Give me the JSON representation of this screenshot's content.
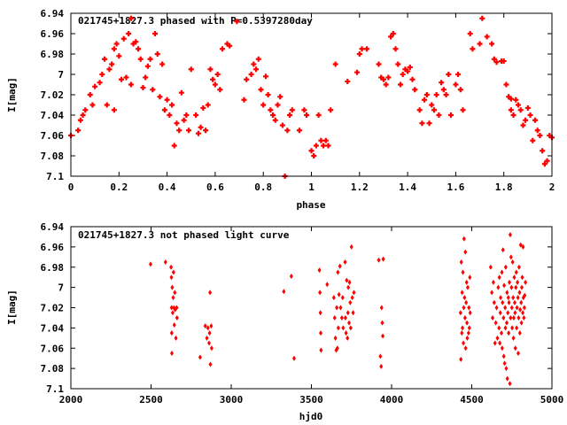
{
  "chart_data": [
    {
      "type": "scatter",
      "title": "021745+1827.3 phased with P=0.5397280day",
      "xlabel": "phase",
      "ylabel": "I[mag]",
      "xlim": [
        0,
        2
      ],
      "ylim": [
        7.1,
        6.94
      ],
      "y_inverted": true,
      "grid": false,
      "marker_color": "#ff0000",
      "marker": "plus",
      "x_ticks": [
        "0",
        "0.2",
        "0.4",
        "0.6",
        "0.8",
        "1",
        "1.2",
        "1.4",
        "1.6",
        "1.8",
        "2"
      ],
      "y_ticks": [
        "6.94",
        "6.96",
        "6.98",
        "7",
        "7.02",
        "7.04",
        "7.06",
        "7.08",
        "7.1"
      ],
      "points": [
        [
          0.0,
          7.06
        ],
        [
          0.03,
          7.055
        ],
        [
          0.04,
          7.045
        ],
        [
          0.05,
          7.04
        ],
        [
          0.06,
          7.035
        ],
        [
          0.08,
          7.02
        ],
        [
          0.09,
          7.03
        ],
        [
          0.1,
          7.012
        ],
        [
          0.12,
          7.008
        ],
        [
          0.13,
          7.0
        ],
        [
          0.14,
          6.985
        ],
        [
          0.15,
          7.03
        ],
        [
          0.16,
          6.995
        ],
        [
          0.17,
          6.99
        ],
        [
          0.18,
          7.035
        ],
        [
          0.18,
          6.975
        ],
        [
          0.19,
          6.97
        ],
        [
          0.2,
          6.982
        ],
        [
          0.21,
          7.005
        ],
        [
          0.22,
          6.965
        ],
        [
          0.23,
          7.003
        ],
        [
          0.24,
          6.96
        ],
        [
          0.25,
          6.945
        ],
        [
          0.25,
          7.01
        ],
        [
          0.26,
          6.97
        ],
        [
          0.27,
          6.968
        ],
        [
          0.28,
          6.975
        ],
        [
          0.29,
          6.985
        ],
        [
          0.3,
          7.013
        ],
        [
          0.31,
          7.003
        ],
        [
          0.32,
          6.992
        ],
        [
          0.33,
          6.985
        ],
        [
          0.34,
          7.015
        ],
        [
          0.35,
          6.96
        ],
        [
          0.36,
          6.98
        ],
        [
          0.37,
          7.022
        ],
        [
          0.38,
          6.99
        ],
        [
          0.39,
          7.035
        ],
        [
          0.4,
          7.025
        ],
        [
          0.41,
          7.04
        ],
        [
          0.42,
          7.03
        ],
        [
          0.43,
          7.07
        ],
        [
          0.44,
          7.048
        ],
        [
          0.45,
          7.055
        ],
        [
          0.46,
          7.018
        ],
        [
          0.47,
          7.045
        ],
        [
          0.48,
          7.04
        ],
        [
          0.49,
          7.055
        ],
        [
          0.5,
          6.995
        ],
        [
          0.52,
          7.04
        ],
        [
          0.53,
          7.058
        ],
        [
          0.54,
          7.052
        ],
        [
          0.55,
          7.033
        ],
        [
          0.56,
          7.055
        ],
        [
          0.57,
          7.03
        ],
        [
          0.58,
          6.995
        ],
        [
          0.59,
          7.005
        ],
        [
          0.6,
          7.01
        ],
        [
          0.61,
          7.0
        ],
        [
          0.62,
          7.015
        ],
        [
          0.63,
          6.975
        ],
        [
          0.65,
          6.97
        ],
        [
          0.66,
          6.972
        ],
        [
          0.69,
          6.948
        ],
        [
          0.72,
          7.025
        ],
        [
          0.73,
          7.005
        ],
        [
          0.75,
          7.0
        ],
        [
          0.76,
          6.99
        ],
        [
          0.77,
          6.995
        ],
        [
          0.78,
          6.985
        ],
        [
          0.79,
          7.015
        ],
        [
          0.8,
          7.03
        ],
        [
          0.81,
          7.002
        ],
        [
          0.82,
          7.02
        ],
        [
          0.83,
          7.035
        ],
        [
          0.84,
          7.04
        ],
        [
          0.85,
          7.045
        ],
        [
          0.86,
          7.03
        ],
        [
          0.87,
          7.022
        ],
        [
          0.88,
          7.05
        ],
        [
          0.89,
          7.1
        ],
        [
          0.9,
          7.055
        ],
        [
          0.91,
          7.04
        ],
        [
          0.92,
          7.035
        ],
        [
          0.95,
          7.055
        ],
        [
          0.97,
          7.035
        ],
        [
          0.98,
          7.04
        ],
        [
          1.0,
          7.075
        ],
        [
          1.01,
          7.08
        ],
        [
          1.02,
          7.07
        ],
        [
          1.03,
          7.04
        ],
        [
          1.04,
          7.065
        ],
        [
          1.05,
          7.07
        ],
        [
          1.06,
          7.065
        ],
        [
          1.07,
          7.07
        ],
        [
          1.08,
          7.035
        ],
        [
          1.1,
          6.99
        ],
        [
          1.15,
          7.007
        ],
        [
          1.19,
          6.998
        ],
        [
          1.2,
          6.98
        ],
        [
          1.21,
          6.975
        ],
        [
          1.23,
          6.975
        ],
        [
          1.28,
          6.99
        ],
        [
          1.29,
          7.003
        ],
        [
          1.3,
          7.005
        ],
        [
          1.31,
          7.01
        ],
        [
          1.32,
          7.003
        ],
        [
          1.33,
          6.963
        ],
        [
          1.34,
          6.96
        ],
        [
          1.35,
          6.975
        ],
        [
          1.36,
          6.99
        ],
        [
          1.37,
          7.01
        ],
        [
          1.38,
          7.0
        ],
        [
          1.39,
          6.995
        ],
        [
          1.4,
          6.997
        ],
        [
          1.41,
          6.993
        ],
        [
          1.42,
          7.005
        ],
        [
          1.43,
          7.015
        ],
        [
          1.45,
          7.035
        ],
        [
          1.46,
          7.048
        ],
        [
          1.47,
          7.025
        ],
        [
          1.48,
          7.02
        ],
        [
          1.49,
          7.048
        ],
        [
          1.5,
          7.03
        ],
        [
          1.51,
          7.035
        ],
        [
          1.52,
          7.02
        ],
        [
          1.53,
          7.04
        ],
        [
          1.54,
          7.008
        ],
        [
          1.55,
          7.015
        ],
        [
          1.56,
          7.02
        ],
        [
          1.57,
          7.0
        ],
        [
          1.58,
          7.04
        ],
        [
          1.6,
          7.01
        ],
        [
          1.61,
          7.0
        ],
        [
          1.62,
          7.015
        ],
        [
          1.63,
          7.035
        ],
        [
          1.66,
          6.96
        ],
        [
          1.67,
          6.975
        ],
        [
          1.7,
          6.97
        ],
        [
          1.71,
          6.945
        ],
        [
          1.73,
          6.963
        ],
        [
          1.75,
          6.97
        ],
        [
          1.76,
          6.985
        ],
        [
          1.77,
          6.988
        ],
        [
          1.79,
          6.987
        ],
        [
          1.8,
          6.987
        ],
        [
          1.81,
          7.01
        ],
        [
          1.82,
          7.022
        ],
        [
          1.83,
          7.035
        ],
        [
          1.83,
          7.024
        ],
        [
          1.84,
          7.04
        ],
        [
          1.85,
          7.025
        ],
        [
          1.86,
          7.03
        ],
        [
          1.87,
          7.035
        ],
        [
          1.88,
          7.05
        ],
        [
          1.89,
          7.045
        ],
        [
          1.9,
          7.033
        ],
        [
          1.91,
          7.04
        ],
        [
          1.92,
          7.065
        ],
        [
          1.93,
          7.045
        ],
        [
          1.94,
          7.055
        ],
        [
          1.95,
          7.06
        ],
        [
          1.96,
          7.075
        ],
        [
          1.97,
          7.088
        ],
        [
          1.98,
          7.085
        ],
        [
          1.99,
          7.06
        ],
        [
          2.0,
          7.062
        ]
      ]
    },
    {
      "type": "scatter",
      "title": "021745+1827.3 not phased light curve",
      "xlabel": "hjd0",
      "ylabel": "I[mag]",
      "xlim": [
        2000,
        5000
      ],
      "ylim": [
        7.1,
        6.94
      ],
      "y_inverted": true,
      "grid": false,
      "marker_color": "#ff0000",
      "marker": "diamond",
      "x_ticks": [
        "2000",
        "2500",
        "3000",
        "3500",
        "4000",
        "4500",
        "5000"
      ],
      "y_ticks": [
        "6.94",
        "6.96",
        "6.98",
        "7",
        "7.02",
        "7.04",
        "7.06",
        "7.08",
        "7.1"
      ],
      "points": [
        [
          2497,
          6.977
        ],
        [
          2590,
          6.975
        ],
        [
          2625,
          6.98
        ],
        [
          2627,
          6.99
        ],
        [
          2628,
          7.02
        ],
        [
          2629,
          7.045
        ],
        [
          2630,
          7.065
        ],
        [
          2632,
          7.0
        ],
        [
          2635,
          7.025
        ],
        [
          2638,
          7.01
        ],
        [
          2640,
          6.985
        ],
        [
          2642,
          7.02
        ],
        [
          2645,
          7.037
        ],
        [
          2648,
          7.005
        ],
        [
          2650,
          7.022
        ],
        [
          2655,
          7.05
        ],
        [
          2660,
          7.02
        ],
        [
          2662,
          7.03
        ],
        [
          2806,
          7.069
        ],
        [
          2838,
          7.038
        ],
        [
          2848,
          7.05
        ],
        [
          2855,
          7.04
        ],
        [
          2862,
          7.055
        ],
        [
          2865,
          7.045
        ],
        [
          2868,
          7.005
        ],
        [
          2870,
          7.076
        ],
        [
          2875,
          7.038
        ],
        [
          2878,
          7.06
        ],
        [
          3328,
          7.004
        ],
        [
          3375,
          6.989
        ],
        [
          3392,
          7.07
        ],
        [
          3550,
          6.983
        ],
        [
          3553,
          7.005
        ],
        [
          3556,
          7.025
        ],
        [
          3558,
          7.045
        ],
        [
          3560,
          7.062
        ],
        [
          3598,
          6.997
        ],
        [
          3640,
          7.01
        ],
        [
          3645,
          7.03
        ],
        [
          3650,
          7.05
        ],
        [
          3655,
          7.062
        ],
        [
          3658,
          7.02
        ],
        [
          3662,
          7.06
        ],
        [
          3665,
          6.985
        ],
        [
          3668,
          7.04
        ],
        [
          3672,
          7.007
        ],
        [
          3678,
          6.979
        ],
        [
          3682,
          7.02
        ],
        [
          3690,
          7.03
        ],
        [
          3695,
          7.01
        ],
        [
          3698,
          7.04
        ],
        [
          3710,
          6.975
        ],
        [
          3712,
          7.03
        ],
        [
          3716,
          7.045
        ],
        [
          3720,
          6.993
        ],
        [
          3725,
          7.05
        ],
        [
          3728,
          7.025
        ],
        [
          3730,
          7.0
        ],
        [
          3735,
          7.035
        ],
        [
          3738,
          6.995
        ],
        [
          3742,
          7.015
        ],
        [
          3745,
          7.04
        ],
        [
          3750,
          6.96
        ],
        [
          3755,
          7.01
        ],
        [
          3760,
          7.025
        ],
        [
          3765,
          7.005
        ],
        [
          3920,
          6.973
        ],
        [
          3930,
          7.068
        ],
        [
          3935,
          7.078
        ],
        [
          3938,
          7.02
        ],
        [
          3942,
          7.035
        ],
        [
          3945,
          7.048
        ],
        [
          3948,
          6.972
        ],
        [
          4430,
          7.025
        ],
        [
          4432,
          7.071
        ],
        [
          4435,
          6.975
        ],
        [
          4438,
          7.045
        ],
        [
          4440,
          7.005
        ],
        [
          4442,
          7.04
        ],
        [
          4445,
          6.985
        ],
        [
          4448,
          7.055
        ],
        [
          4450,
          7.02
        ],
        [
          4452,
          6.952
        ],
        [
          4455,
          7.01
        ],
        [
          4458,
          7.03
        ],
        [
          4460,
          6.965
        ],
        [
          4462,
          7.06
        ],
        [
          4465,
          7.015
        ],
        [
          4468,
          6.995
        ],
        [
          4470,
          7.035
        ],
        [
          4472,
          7.05
        ],
        [
          4475,
          7.0
        ],
        [
          4480,
          7.045
        ],
        [
          4482,
          7.02
        ],
        [
          4485,
          7.04
        ],
        [
          4488,
          6.99
        ],
        [
          4490,
          7.025
        ],
        [
          4618,
          6.98
        ],
        [
          4625,
          7.005
        ],
        [
          4630,
          7.03
        ],
        [
          4635,
          6.995
        ],
        [
          4640,
          7.015
        ],
        [
          4645,
          7.055
        ],
        [
          4650,
          7.035
        ],
        [
          4655,
          7.02
        ],
        [
          4660,
          7.05
        ],
        [
          4665,
          7.0
        ],
        [
          4670,
          7.04
        ],
        [
          4672,
          6.99
        ],
        [
          4675,
          7.055
        ],
        [
          4678,
          7.025
        ],
        [
          4680,
          7.01
        ],
        [
          4685,
          7.045
        ],
        [
          4688,
          6.985
        ],
        [
          4690,
          7.06
        ],
        [
          4692,
          7.015
        ],
        [
          4695,
          6.963
        ],
        [
          4698,
          7.03
        ],
        [
          4700,
          7.068
        ],
        [
          4702,
          6.998
        ],
        [
          4705,
          7.075
        ],
        [
          4708,
          7.02
        ],
        [
          4710,
          7.04
        ],
        [
          4712,
          6.98
        ],
        [
          4715,
          7.08
        ],
        [
          4718,
          7.035
        ],
        [
          4720,
          7.005
        ],
        [
          4722,
          7.09
        ],
        [
          4725,
          7.025
        ],
        [
          4728,
          7.01
        ],
        [
          4730,
          7.045
        ],
        [
          4732,
          7.015
        ],
        [
          4735,
          6.995
        ],
        [
          4738,
          7.095
        ],
        [
          4740,
          6.948
        ],
        [
          4742,
          7.03
        ],
        [
          4745,
          6.97
        ],
        [
          4748,
          7.0
        ],
        [
          4750,
          7.02
        ],
        [
          4752,
          7.04
        ],
        [
          4755,
          6.975
        ],
        [
          4758,
          7.01
        ],
        [
          4760,
          7.05
        ],
        [
          4762,
          7.03
        ],
        [
          4765,
          6.99
        ],
        [
          4768,
          7.015
        ],
        [
          4770,
          7.025
        ],
        [
          4772,
          7.06
        ],
        [
          4775,
          7.0
        ],
        [
          4778,
          6.985
        ],
        [
          4780,
          7.04
        ],
        [
          4782,
          7.02
        ],
        [
          4785,
          6.995
        ],
        [
          4788,
          7.01
        ],
        [
          4790,
          7.065
        ],
        [
          4792,
          7.03
        ],
        [
          4795,
          6.98
        ],
        [
          4798,
          7.005
        ],
        [
          4800,
          7.045
        ],
        [
          4802,
          7.022
        ],
        [
          4805,
          6.958
        ],
        [
          4808,
          7.015
        ],
        [
          4810,
          7.035
        ],
        [
          4812,
          7.0
        ],
        [
          4815,
          6.99
        ],
        [
          4818,
          7.025
        ],
        [
          4820,
          6.96
        ],
        [
          4822,
          7.01
        ],
        [
          4825,
          7.03
        ],
        [
          4828,
          7.02
        ],
        [
          4830,
          7.008
        ],
        [
          4835,
          6.995
        ]
      ]
    }
  ]
}
